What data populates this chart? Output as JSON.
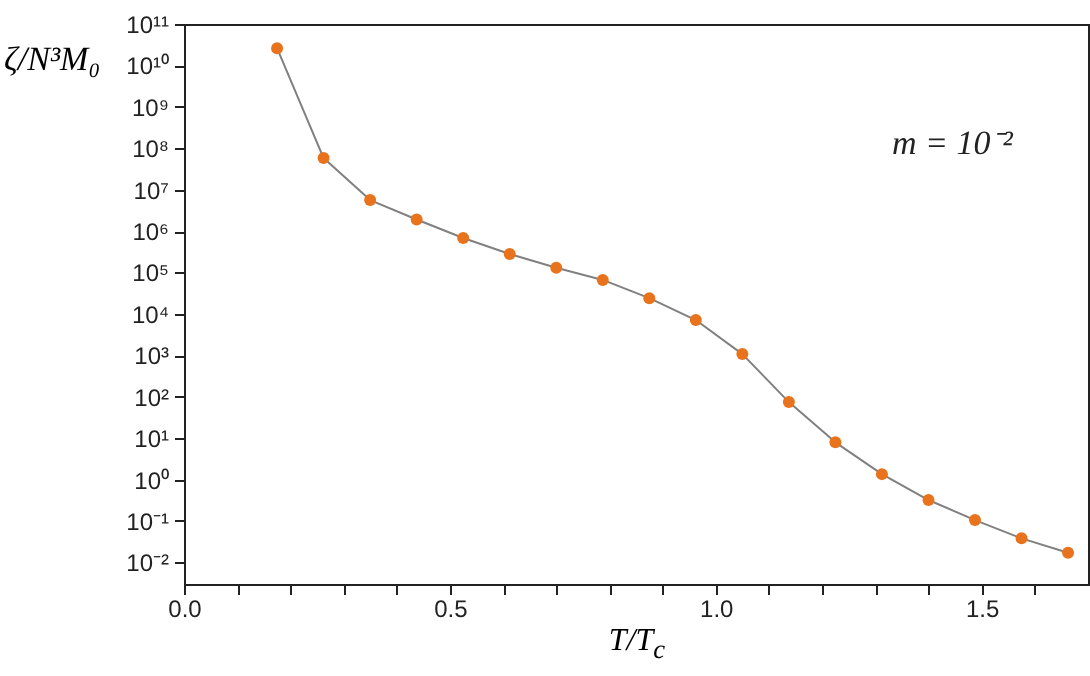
{
  "chart_data": {
    "type": "line",
    "xlabel": "T/T$_{c}$",
    "ylabel": "ζ/N³M₀",
    "annotations": [
      "m = 10⁻²"
    ],
    "x": [
      0.175,
      0.2625,
      0.35,
      0.4375,
      0.525,
      0.6125,
      0.7,
      0.7875,
      0.875,
      0.9625,
      1.05,
      1.1375,
      1.225,
      1.3125,
      1.4,
      1.4875,
      1.575,
      1.6625
    ],
    "series": [
      {
        "type": "line",
        "color": "#808080",
        "marker": "none",
        "values": [
          26000000000.0,
          58000000.0,
          5600000.0,
          1900000.0,
          680000.0,
          280000.0,
          130000.0,
          66000.0,
          24000.0,
          7100.0,
          1070,
          74,
          7.9,
          1.35,
          0.32,
          0.105,
          0.038,
          0.017
        ]
      },
      {
        "type": "scatter",
        "color": "#e8731c",
        "marker": "circle",
        "values": [
          26000000000.0,
          58000000.0,
          5600000.0,
          1900000.0,
          680000.0,
          280000.0,
          130000.0,
          66000.0,
          24000.0,
          7100.0,
          1070,
          74,
          7.9,
          1.35,
          0.32,
          0.105,
          0.038,
          0.017
        ]
      }
    ],
    "line_style": "solid",
    "log": "y",
    "xlim": [
      0,
      1.7
    ],
    "ylim": [
      0.003,
      100000000000.0
    ],
    "xticks": [
      {
        "value": 0,
        "label": "0.0"
      },
      {
        "value": 0.1,
        "label": null
      },
      {
        "value": 0.2,
        "label": null
      },
      {
        "value": 0.3,
        "label": null
      },
      {
        "value": 0.4,
        "label": null
      },
      {
        "value": 0.5,
        "label": "0.5"
      },
      {
        "value": 0.6,
        "label": null
      },
      {
        "value": 0.7,
        "label": null
      },
      {
        "value": 0.8,
        "label": null
      },
      {
        "value": 0.9,
        "label": null
      },
      {
        "value": 1,
        "label": "1.0"
      },
      {
        "value": 1.1,
        "label": null
      },
      {
        "value": 1.2,
        "label": null
      },
      {
        "value": 1.3,
        "label": null
      },
      {
        "value": 1.4,
        "label": null
      },
      {
        "value": 1.5,
        "label": "1.5"
      },
      {
        "value": 1.6,
        "label": null
      }
    ],
    "yticks": [
      {
        "value": 0.01,
        "label": "10⁻²"
      },
      {
        "value": 0.1,
        "label": "10⁻¹"
      },
      {
        "value": 1,
        "label": "10⁰"
      },
      {
        "value": 10,
        "label": "10¹"
      },
      {
        "value": 100,
        "label": "10²"
      },
      {
        "value": 1000,
        "label": "10³"
      },
      {
        "value": 10000.0,
        "label": "10⁴"
      },
      {
        "value": 100000.0,
        "label": "10⁵"
      },
      {
        "value": 1000000.0,
        "label": "10⁶"
      },
      {
        "value": 10000000.0,
        "label": "10⁷"
      },
      {
        "value": 100000000.0,
        "label": "10⁸"
      },
      {
        "value": 1000000000.0,
        "label": "10⁹"
      },
      {
        "value": 10000000000.0,
        "label": "10¹⁰"
      },
      {
        "value": 100000000000.0,
        "label": "10¹¹"
      }
    ]
  }
}
